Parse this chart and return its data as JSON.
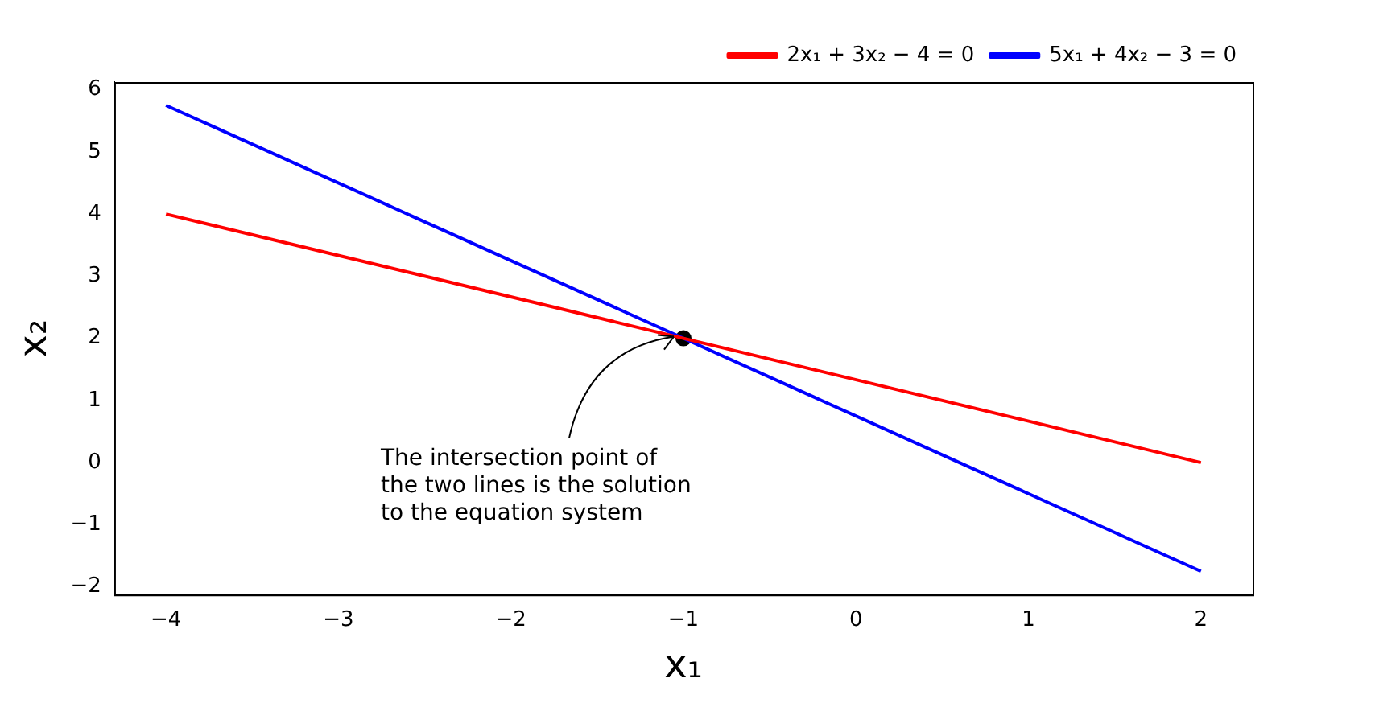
{
  "chart_data": {
    "type": "line",
    "xlabel": "x₁",
    "ylabel": "x₂",
    "xlim": [
      -4.3,
      2.3
    ],
    "ylim": [
      -2.125,
      6.125
    ],
    "xticks": [
      -4,
      -3,
      -2,
      -1,
      0,
      1,
      2
    ],
    "yticks": [
      -2,
      -1,
      0,
      1,
      2,
      3,
      4,
      5,
      6
    ],
    "grid": false,
    "legend": "top right",
    "marker": "none",
    "line_style": "solid",
    "series": [
      {
        "name": "2x₁ + 3x₂ − 4 = 0",
        "color": "#ff0000",
        "x": [
          -4,
          2
        ],
        "values": [
          4,
          0
        ]
      },
      {
        "name": "5x₁ + 4x₂ − 3 = 0",
        "color": "#0000ff",
        "x": [
          -4,
          2
        ],
        "values": [
          5.75,
          -1.75
        ]
      },
      {
        "type": "scatter",
        "color": "#000000",
        "x": [
          -1
        ],
        "values": [
          2
        ],
        "marker": "circle"
      }
    ],
    "annotations": [
      {
        "text": "The intersection point of\nthe two lines is the solution\nto the equation system",
        "x": -1,
        "y": 2
      }
    ]
  }
}
